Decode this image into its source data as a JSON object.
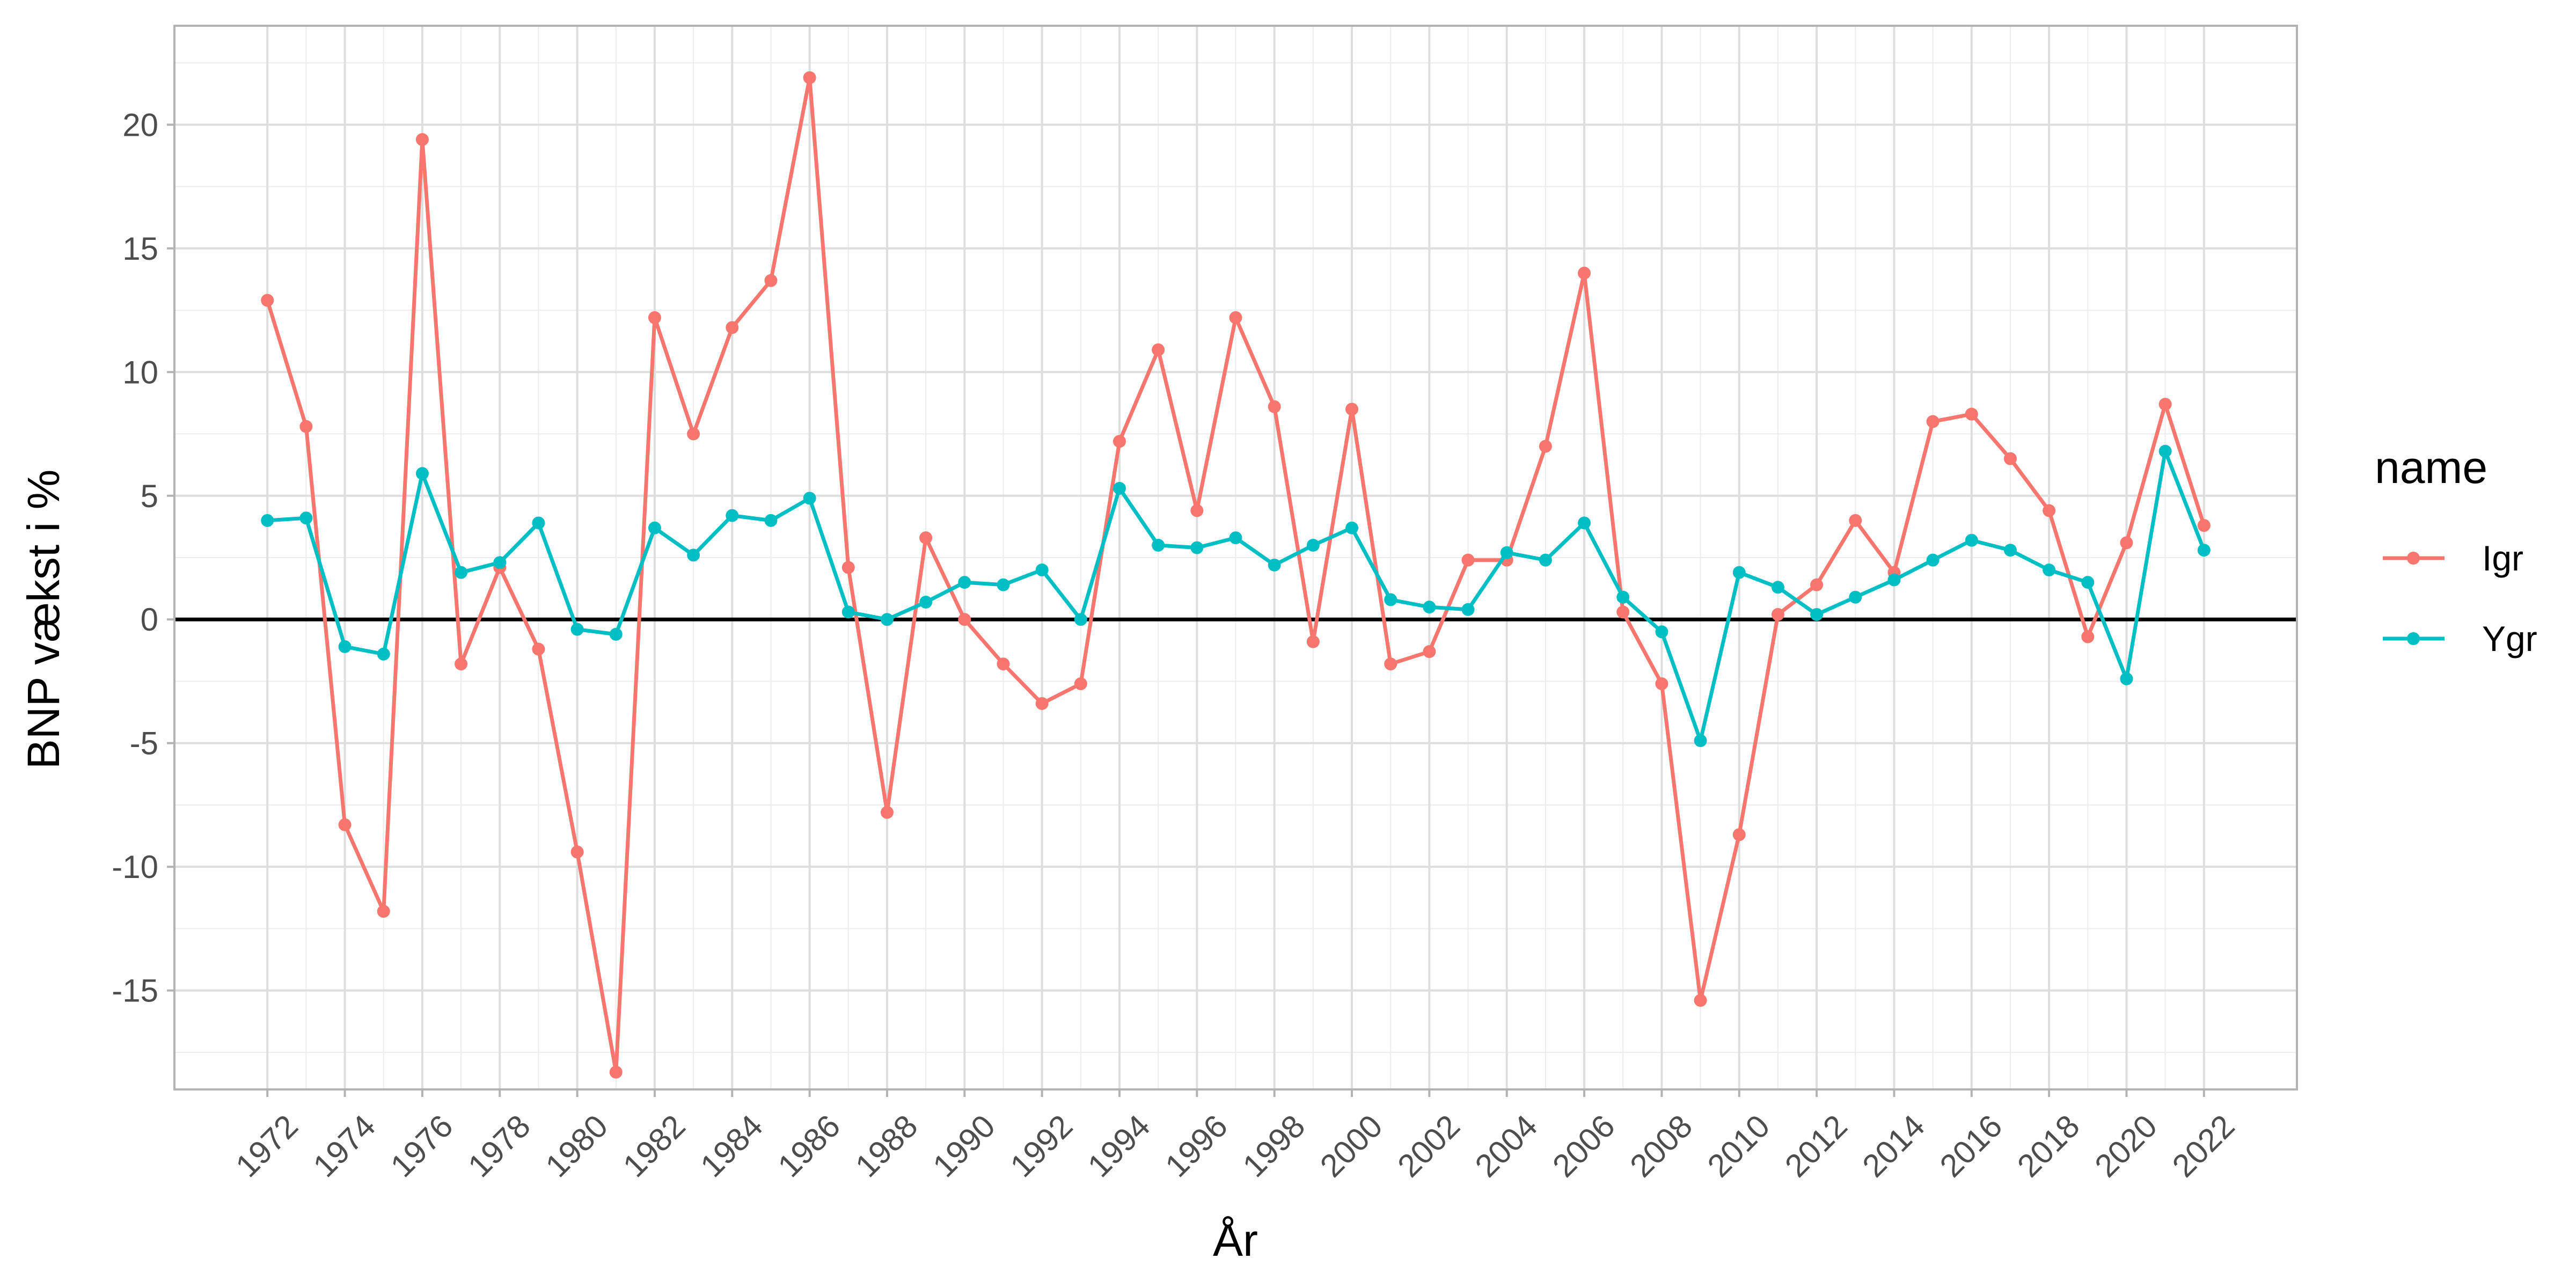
{
  "chart_data": {
    "type": "line",
    "xlabel": "År",
    "ylabel": "BNP vækst i %",
    "xlim": [
      1969.6,
      2024.4
    ],
    "ylim": [
      -19,
      24
    ],
    "x_ticks": [
      1972,
      1974,
      1976,
      1978,
      1980,
      1982,
      1984,
      1986,
      1988,
      1990,
      1992,
      1994,
      1996,
      1998,
      2000,
      2002,
      2004,
      2006,
      2008,
      2010,
      2012,
      2014,
      2016,
      2018,
      2020,
      2022
    ],
    "y_ticks": [
      -15,
      -10,
      -5,
      0,
      5,
      10,
      15,
      20
    ],
    "grid": true,
    "zero_line": true,
    "legend": {
      "title": "name",
      "placement": "right"
    },
    "x": [
      1972,
      1973,
      1974,
      1975,
      1976,
      1977,
      1978,
      1979,
      1980,
      1981,
      1982,
      1983,
      1984,
      1985,
      1986,
      1987,
      1988,
      1989,
      1990,
      1991,
      1992,
      1993,
      1994,
      1995,
      1996,
      1997,
      1998,
      1999,
      2000,
      2001,
      2002,
      2003,
      2004,
      2005,
      2006,
      2007,
      2008,
      2009,
      2010,
      2011,
      2012,
      2013,
      2014,
      2015,
      2016,
      2017,
      2018,
      2019,
      2020,
      2021,
      2022
    ],
    "series": [
      {
        "name": "Igr",
        "color": "#F8766D",
        "values": [
          12.9,
          7.8,
          -8.3,
          -11.8,
          19.4,
          -1.8,
          2.1,
          -1.2,
          -9.4,
          -18.3,
          12.2,
          7.5,
          11.8,
          13.7,
          21.9,
          2.1,
          -7.8,
          3.3,
          0.0,
          -1.8,
          -3.4,
          -2.6,
          7.2,
          10.9,
          4.4,
          12.2,
          8.6,
          -0.9,
          8.5,
          -1.8,
          -1.3,
          2.4,
          2.4,
          7.0,
          14.0,
          0.3,
          -2.6,
          -15.4,
          -8.7,
          0.2,
          1.4,
          4.0,
          1.9,
          8.0,
          8.3,
          6.5,
          4.4,
          -0.7,
          3.1,
          8.7,
          3.8
        ]
      },
      {
        "name": "Ygr",
        "color": "#00BFC4",
        "values": [
          4.0,
          4.1,
          -1.1,
          -1.4,
          5.9,
          1.9,
          2.3,
          3.9,
          -0.4,
          -0.6,
          3.7,
          2.6,
          4.2,
          4.0,
          4.9,
          0.3,
          0.0,
          0.7,
          1.5,
          1.4,
          2.0,
          0.0,
          5.3,
          3.0,
          2.9,
          3.3,
          2.2,
          3.0,
          3.7,
          0.8,
          0.5,
          0.4,
          2.7,
          2.4,
          3.9,
          0.9,
          -0.5,
          -4.9,
          1.9,
          1.3,
          0.2,
          0.9,
          1.6,
          2.4,
          3.2,
          2.8,
          2.0,
          1.5,
          -2.4,
          6.8,
          2.8
        ]
      }
    ]
  }
}
